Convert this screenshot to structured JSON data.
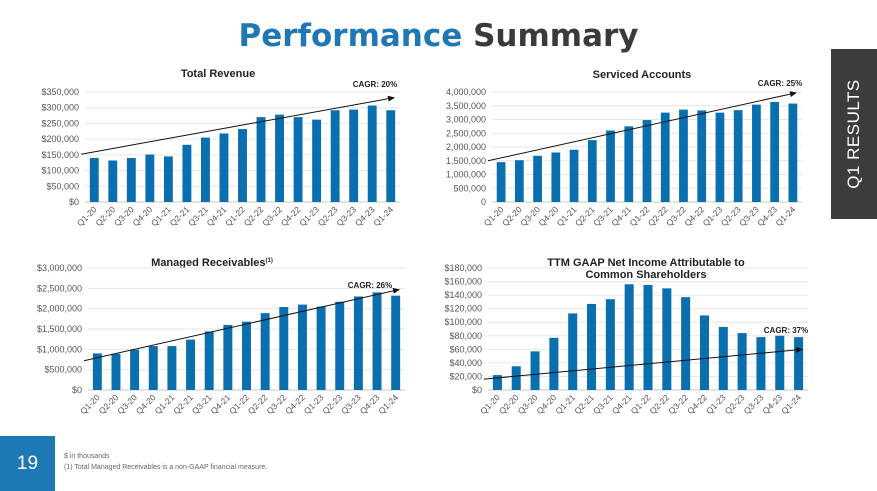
{
  "header": {
    "title_part1": "Performance",
    "title_part2": "Summary"
  },
  "side_tab": {
    "label": "Q1 RESULTS"
  },
  "page_number": "19",
  "footnotes": {
    "line1": "$ in thousands",
    "line2": "(1) Total Managed Receivables is a non-GAAP financial measure."
  },
  "colors": {
    "bar": "#0a6fae",
    "accent": "#1e78b4",
    "dark": "#3c3c3c"
  },
  "chart_data": [
    {
      "id": "total-revenue",
      "type": "bar",
      "title": "Total Revenue",
      "title_lines": [
        "Total Revenue"
      ],
      "categories": [
        "Q1-20",
        "Q2-20",
        "Q3-20",
        "Q4-20",
        "Q1-21",
        "Q2-21",
        "Q3-21",
        "Q4-21",
        "Q1-22",
        "Q2-22",
        "Q3-22",
        "Q4-22",
        "Q1-23",
        "Q2-23",
        "Q3-23",
        "Q4-23",
        "Q1-24"
      ],
      "values": [
        140000,
        132000,
        140000,
        151000,
        145000,
        182000,
        205000,
        218000,
        232000,
        270000,
        278000,
        270000,
        262000,
        292000,
        294000,
        307000,
        292000
      ],
      "ylim": [
        0,
        350000
      ],
      "yticks": [
        0,
        50000,
        100000,
        150000,
        200000,
        250000,
        300000,
        350000
      ],
      "ytick_labels": [
        "$0",
        "$50,000",
        "$100,000",
        "$150,000",
        "$200,000",
        "$250,000",
        "$300,000",
        "$350,000"
      ],
      "trend": [
        152000,
        332000
      ],
      "cagr_label": "CAGR: 20%"
    },
    {
      "id": "serviced-accounts",
      "type": "bar",
      "title": "Serviced Accounts",
      "title_lines": [
        "Serviced Accounts"
      ],
      "categories": [
        "Q1-20",
        "Q2-20",
        "Q3-20",
        "Q4-20",
        "Q1-21",
        "Q2-21",
        "Q3-21",
        "Q4-21",
        "Q1-22",
        "Q2-22",
        "Q3-22",
        "Q4-22",
        "Q1-23",
        "Q2-23",
        "Q3-23",
        "Q4-23",
        "Q1-24"
      ],
      "values": [
        1450000,
        1520000,
        1680000,
        1800000,
        1900000,
        2250000,
        2600000,
        2750000,
        2980000,
        3250000,
        3360000,
        3330000,
        3250000,
        3340000,
        3540000,
        3640000,
        3580000
      ],
      "ylim": [
        0,
        4000000
      ],
      "yticks": [
        0,
        500000,
        1000000,
        1500000,
        2000000,
        2500000,
        3000000,
        3500000,
        4000000
      ],
      "ytick_labels": [
        "0",
        "500,000",
        "1,000,000",
        "1,500,000",
        "2,000,000",
        "2,500,000",
        "3,000,000",
        "3,500,000",
        "4,000,000"
      ],
      "trend": [
        1500000,
        3970000
      ],
      "cagr_label": "CAGR: 25%"
    },
    {
      "id": "managed-receivables",
      "type": "bar",
      "title": "Managed Receivables(1)",
      "title_lines": [
        "Managed Receivables"
      ],
      "title_sup": "(1)",
      "categories": [
        "Q1-20",
        "Q2-20",
        "Q3-20",
        "Q4-20",
        "Q1-21",
        "Q2-21",
        "Q3-21",
        "Q4-21",
        "Q1-22",
        "Q2-22",
        "Q3-22",
        "Q4-22",
        "Q1-23",
        "Q2-23",
        "Q3-23",
        "Q4-23",
        "Q1-24"
      ],
      "values": [
        900000,
        890000,
        990000,
        1080000,
        1080000,
        1240000,
        1440000,
        1600000,
        1680000,
        1890000,
        2040000,
        2100000,
        2050000,
        2170000,
        2300000,
        2400000,
        2320000
      ],
      "ylim": [
        0,
        3000000
      ],
      "yticks": [
        0,
        500000,
        1000000,
        1500000,
        2000000,
        2500000,
        3000000
      ],
      "ytick_labels": [
        "$0",
        "$500,000",
        "$1,000,000",
        "$1,500,000",
        "$2,000,000",
        "$2,500,000",
        "$3,000,000"
      ],
      "trend": [
        720000,
        2470000
      ],
      "cagr_label": "CAGR: 26%"
    },
    {
      "id": "ttm-gaap-net-income",
      "type": "bar",
      "title": "TTM GAAP Net Income Attributable to Common Shareholders",
      "title_lines": [
        "TTM GAAP Net Income Attributable to",
        "Common Shareholders"
      ],
      "categories": [
        "Q1-20",
        "Q2-20",
        "Q3-20",
        "Q4-20",
        "Q1-21",
        "Q2-21",
        "Q3-21",
        "Q4-21",
        "Q1-22",
        "Q2-22",
        "Q3-22",
        "Q4-22",
        "Q1-23",
        "Q2-23",
        "Q3-23",
        "Q4-23",
        "Q1-24"
      ],
      "values": [
        22000,
        35000,
        57000,
        77000,
        113000,
        127000,
        134000,
        156000,
        155000,
        150000,
        137000,
        110000,
        93000,
        84000,
        78000,
        80000,
        78000
      ],
      "ylim": [
        0,
        180000
      ],
      "yticks": [
        0,
        20000,
        40000,
        60000,
        80000,
        100000,
        120000,
        140000,
        160000,
        180000
      ],
      "ytick_labels": [
        "$0",
        "$20,000",
        "$40,000",
        "$60,000",
        "$80,000",
        "$100,000",
        "$120,000",
        "$140,000",
        "$160,000",
        "$180,000"
      ],
      "trend": [
        16000,
        60000
      ],
      "cagr_label": "CAGR: 37%"
    }
  ]
}
